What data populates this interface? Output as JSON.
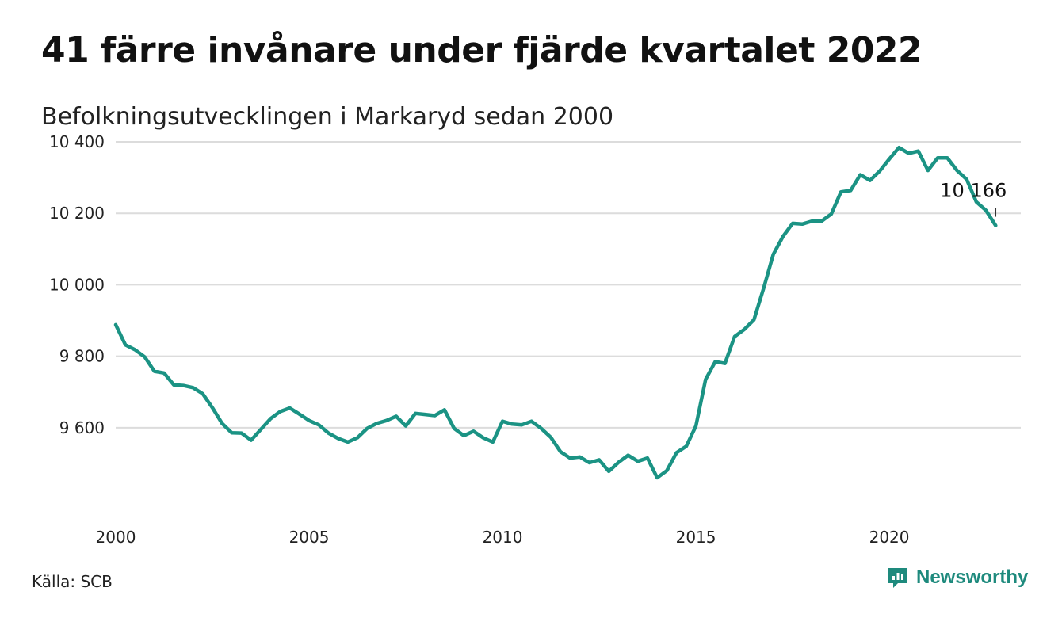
{
  "title": "41 färre invånare under fjärde kvartalet 2022",
  "subtitle": "Befolkningsutvecklingen i Markaryd sedan 2000",
  "source": "Källa: SCB",
  "brand": {
    "name": "Newsworthy",
    "icon": "newsworthy-logo-icon",
    "color": "#1e8a7d"
  },
  "chart_data": {
    "type": "line",
    "grid": true,
    "line_color": "#1b9384",
    "ylim": [
      9440,
      10420
    ],
    "yticks": [
      9600,
      9800,
      10000,
      10200,
      10400
    ],
    "ytick_labels": [
      "9 600",
      "9 800",
      "10 000",
      "10 200",
      "10 400"
    ],
    "xlim": [
      2000.0,
      2023.4
    ],
    "xticks": [
      2000,
      2005,
      2010,
      2015,
      2020
    ],
    "xtick_labels": [
      "2000",
      "2005",
      "2010",
      "2015",
      "2020"
    ],
    "annotation": {
      "label": "10 166",
      "value": 10166,
      "x": 2022.75
    },
    "series": [
      {
        "x": [
          2000.0,
          2000.25,
          2000.5,
          2000.75,
          2001.0,
          2001.25,
          2001.5,
          2001.75,
          2002.0,
          2002.25,
          2002.5,
          2002.75,
          2003.0,
          2003.25,
          2003.5,
          2003.75,
          2004.0,
          2004.25,
          2004.5,
          2004.75,
          2005.0,
          2005.25,
          2005.5,
          2005.75,
          2006.0,
          2006.25,
          2006.5,
          2006.75,
          2007.0,
          2007.25,
          2007.5,
          2007.75,
          2008.0,
          2008.25,
          2008.5,
          2008.75,
          2009.0,
          2009.25,
          2009.5,
          2009.75,
          2010.0,
          2010.25,
          2010.5,
          2010.75,
          2011.0,
          2011.25,
          2011.5,
          2011.75,
          2012.0,
          2012.25,
          2012.5,
          2012.75,
          2013.0,
          2013.25,
          2013.5,
          2013.75,
          2014.0,
          2014.25,
          2014.5,
          2014.75,
          2015.0,
          2015.25,
          2015.5,
          2015.75,
          2016.0,
          2016.25,
          2016.5,
          2016.75,
          2017.0,
          2017.25,
          2017.5,
          2017.75,
          2018.0,
          2018.25,
          2018.5,
          2018.75,
          2019.0,
          2019.25,
          2019.5,
          2019.75,
          2020.0,
          2020.25,
          2020.5,
          2020.75,
          2021.0,
          2021.25,
          2021.5,
          2021.75,
          2022.0,
          2022.25,
          2022.5,
          2022.75
        ],
        "values": [
          9888,
          9832,
          9818,
          9798,
          9758,
          9753,
          9720,
          9718,
          9712,
          9695,
          9656,
          9612,
          9586,
          9585,
          9565,
          9595,
          9625,
          9645,
          9655,
          9638,
          9620,
          9608,
          9585,
          9570,
          9560,
          9572,
          9598,
          9612,
          9620,
          9632,
          9605,
          9640,
          9637,
          9634,
          9650,
          9598,
          9578,
          9590,
          9572,
          9560,
          9618,
          9610,
          9608,
          9618,
          9598,
          9573,
          9533,
          9515,
          9518,
          9502,
          9510,
          9478,
          9503,
          9523,
          9506,
          9515,
          9460,
          9480,
          9530,
          9548,
          9605,
          9735,
          9785,
          9780,
          9855,
          9875,
          9902,
          9990,
          10085,
          10135,
          10172,
          10170,
          10178,
          10178,
          10198,
          10260,
          10264,
          10308,
          10292,
          10318,
          10352,
          10384,
          10368,
          10374,
          10320,
          10355,
          10355,
          10320,
          10295,
          10232,
          10208,
          10166
        ]
      }
    ]
  }
}
